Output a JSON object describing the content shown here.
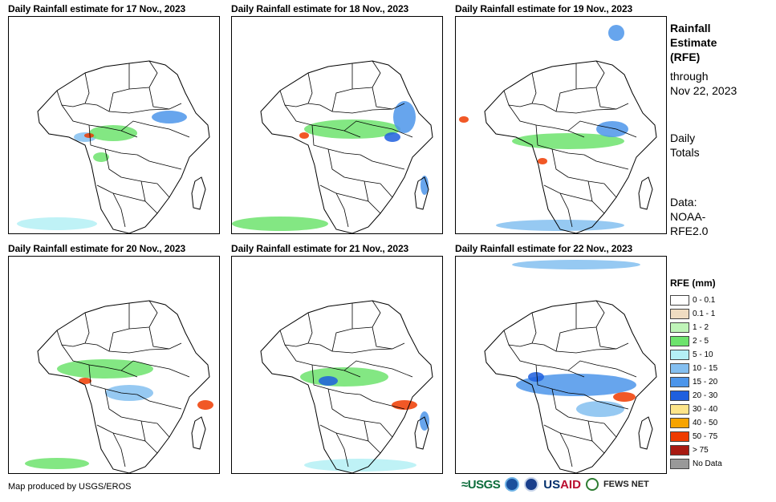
{
  "panels": [
    {
      "title": "Daily Rainfall estimate for 17 Nov., 2023"
    },
    {
      "title": "Daily Rainfall estimate for 18 Nov., 2023"
    },
    {
      "title": "Daily Rainfall estimate for 19 Nov., 2023"
    },
    {
      "title": "Daily Rainfall estimate for 20 Nov., 2023"
    },
    {
      "title": "Daily Rainfall estimate for 21 Nov., 2023"
    },
    {
      "title": "Daily Rainfall estimate for 22 Nov., 2023"
    }
  ],
  "side": {
    "heading_1": "Rainfall",
    "heading_2": "Estimate",
    "heading_3": "(RFE)",
    "through_1": "through",
    "through_2": "Nov 22, 2023",
    "daily_1": "Daily",
    "daily_2": "Totals",
    "data_1": "Data:",
    "data_2": "NOAA-",
    "data_3": "RFE2.0"
  },
  "legend": {
    "title": "RFE (mm)",
    "items": [
      {
        "label": "0 - 0.1",
        "color": "#ffffff"
      },
      {
        "label": "0.1 - 1",
        "color": "#efdcc1"
      },
      {
        "label": "1 - 2",
        "color": "#bff4b8"
      },
      {
        "label": "2 - 5",
        "color": "#6de36d"
      },
      {
        "label": "5 - 10",
        "color": "#b4f0f5"
      },
      {
        "label": "10 - 15",
        "color": "#84bff0"
      },
      {
        "label": "15 - 20",
        "color": "#4c95ea"
      },
      {
        "label": "20 - 30",
        "color": "#1f5fde"
      },
      {
        "label": "30 - 40",
        "color": "#fde58a"
      },
      {
        "label": "40 - 50",
        "color": "#f7a400"
      },
      {
        "label": "50 - 75",
        "color": "#ee3b00"
      },
      {
        "label": "> 75",
        "color": "#a81a12"
      },
      {
        "label": "No Data",
        "color": "#999999"
      }
    ]
  },
  "footer": {
    "credit": "Map produced by USGS/EROS",
    "usgs": "≈USGS",
    "usaid_a": "US",
    "usaid_b": "AID",
    "fews": "FEWS NET"
  }
}
